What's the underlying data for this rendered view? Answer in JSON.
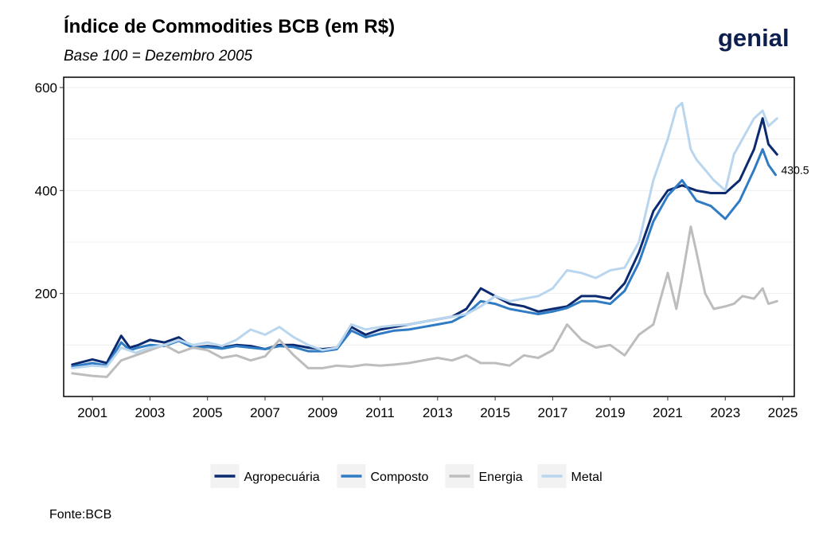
{
  "header": {
    "title": "Índice de Commodities BCB (em R$)",
    "subtitle": "Base 100 = Dezembro 2005",
    "logo_text": "genial"
  },
  "footer": {
    "source": "Fonte:BCB"
  },
  "colors": {
    "Agropecuária": "#0b2a6f",
    "Composto": "#2f7bc4",
    "Energia": "#bdbdbd",
    "Metal": "#b9d6ee"
  },
  "chart_data": {
    "type": "line",
    "title": "Índice de Commodities BCB (em R$)",
    "subtitle": "Base 100 = Dezembro 2005",
    "xlabel": "",
    "ylabel": "",
    "xlim": [
      2000.0,
      2025.4
    ],
    "ylim": [
      0,
      620
    ],
    "x_ticks": [
      2001,
      2003,
      2005,
      2007,
      2009,
      2011,
      2013,
      2015,
      2017,
      2019,
      2021,
      2023,
      2025
    ],
    "y_ticks": [
      200,
      400,
      600
    ],
    "grid": true,
    "legend_position": "bottom",
    "annotations": [
      {
        "text": "430.5",
        "series": "Composto",
        "x": 2024.75,
        "y": 430.5
      }
    ],
    "series": [
      {
        "name": "Agropecuária",
        "x": [
          2000.3,
          2001.0,
          2001.5,
          2002.0,
          2002.3,
          2002.6,
          2003.0,
          2003.5,
          2004.0,
          2004.5,
          2005.0,
          2005.5,
          2006.0,
          2006.5,
          2007.0,
          2007.5,
          2008.0,
          2008.5,
          2009.0,
          2009.5,
          2010.0,
          2010.5,
          2011.0,
          2011.5,
          2012.0,
          2012.5,
          2013.0,
          2013.5,
          2014.0,
          2014.5,
          2015.0,
          2015.5,
          2016.0,
          2016.5,
          2017.0,
          2017.5,
          2018.0,
          2018.5,
          2019.0,
          2019.5,
          2020.0,
          2020.5,
          2021.0,
          2021.5,
          2022.0,
          2022.5,
          2023.0,
          2023.5,
          2024.0,
          2024.3,
          2024.5,
          2024.8
        ],
        "values": [
          62,
          72,
          65,
          118,
          95,
          100,
          110,
          105,
          115,
          95,
          98,
          95,
          100,
          98,
          92,
          100,
          100,
          95,
          92,
          95,
          135,
          120,
          130,
          135,
          140,
          145,
          150,
          155,
          170,
          210,
          195,
          180,
          175,
          165,
          170,
          175,
          195,
          195,
          190,
          220,
          280,
          360,
          400,
          410,
          400,
          395,
          395,
          420,
          480,
          540,
          490,
          470
        ]
      },
      {
        "name": "Composto",
        "x": [
          2000.3,
          2001.0,
          2001.5,
          2002.0,
          2002.3,
          2002.6,
          2003.0,
          2003.5,
          2004.0,
          2004.5,
          2005.0,
          2005.5,
          2006.0,
          2006.5,
          2007.0,
          2007.5,
          2008.0,
          2008.5,
          2009.0,
          2009.5,
          2010.0,
          2010.5,
          2011.0,
          2011.5,
          2012.0,
          2012.5,
          2013.0,
          2013.5,
          2014.0,
          2014.5,
          2015.0,
          2015.5,
          2016.0,
          2016.5,
          2017.0,
          2017.5,
          2018.0,
          2018.5,
          2019.0,
          2019.5,
          2020.0,
          2020.5,
          2021.0,
          2021.5,
          2022.0,
          2022.5,
          2023.0,
          2023.5,
          2024.0,
          2024.3,
          2024.5,
          2024.75
        ],
        "values": [
          58,
          65,
          60,
          105,
          90,
          95,
          100,
          98,
          108,
          95,
          96,
          93,
          98,
          95,
          92,
          98,
          96,
          88,
          88,
          92,
          128,
          115,
          122,
          128,
          130,
          135,
          140,
          145,
          160,
          185,
          180,
          170,
          165,
          160,
          165,
          172,
          185,
          185,
          180,
          205,
          260,
          340,
          390,
          420,
          380,
          370,
          345,
          380,
          440,
          480,
          450,
          430.5
        ]
      },
      {
        "name": "Energia",
        "x": [
          2000.3,
          2001.0,
          2001.5,
          2002.0,
          2002.5,
          2003.0,
          2003.5,
          2004.0,
          2004.5,
          2005.0,
          2005.5,
          2006.0,
          2006.5,
          2007.0,
          2007.5,
          2008.0,
          2008.5,
          2009.0,
          2009.5,
          2010.0,
          2010.5,
          2011.0,
          2011.5,
          2012.0,
          2012.5,
          2013.0,
          2013.5,
          2014.0,
          2014.5,
          2015.0,
          2015.5,
          2016.0,
          2016.5,
          2017.0,
          2017.5,
          2018.0,
          2018.5,
          2019.0,
          2019.5,
          2020.0,
          2020.5,
          2021.0,
          2021.3,
          2021.5,
          2021.8,
          2022.0,
          2022.3,
          2022.6,
          2023.0,
          2023.3,
          2023.6,
          2024.0,
          2024.3,
          2024.5,
          2024.8
        ],
        "values": [
          45,
          40,
          38,
          70,
          80,
          90,
          100,
          85,
          95,
          90,
          75,
          80,
          70,
          78,
          110,
          80,
          55,
          55,
          60,
          58,
          62,
          60,
          62,
          65,
          70,
          75,
          70,
          80,
          65,
          65,
          60,
          80,
          75,
          90,
          140,
          110,
          95,
          100,
          80,
          120,
          140,
          240,
          170,
          230,
          330,
          280,
          200,
          170,
          175,
          180,
          195,
          190,
          210,
          180,
          185
        ]
      },
      {
        "name": "Metal",
        "x": [
          2000.3,
          2001.0,
          2001.5,
          2002.0,
          2002.5,
          2003.0,
          2003.5,
          2004.0,
          2004.5,
          2005.0,
          2005.5,
          2006.0,
          2006.5,
          2007.0,
          2007.5,
          2008.0,
          2008.5,
          2009.0,
          2009.5,
          2010.0,
          2010.5,
          2011.0,
          2011.5,
          2012.0,
          2012.5,
          2013.0,
          2013.5,
          2014.0,
          2014.5,
          2015.0,
          2015.5,
          2016.0,
          2016.5,
          2017.0,
          2017.5,
          2018.0,
          2018.5,
          2019.0,
          2019.5,
          2020.0,
          2020.5,
          2021.0,
          2021.3,
          2021.5,
          2021.8,
          2022.0,
          2022.3,
          2022.6,
          2023.0,
          2023.3,
          2023.6,
          2024.0,
          2024.3,
          2024.5,
          2024.8
        ],
        "values": [
          55,
          60,
          58,
          95,
          85,
          95,
          100,
          110,
          100,
          105,
          98,
          110,
          130,
          120,
          135,
          115,
          100,
          90,
          95,
          140,
          130,
          135,
          138,
          140,
          145,
          150,
          155,
          160,
          175,
          195,
          185,
          190,
          195,
          210,
          245,
          240,
          230,
          245,
          250,
          300,
          420,
          500,
          560,
          570,
          480,
          460,
          440,
          420,
          400,
          470,
          500,
          540,
          555,
          525,
          540
        ]
      }
    ]
  }
}
